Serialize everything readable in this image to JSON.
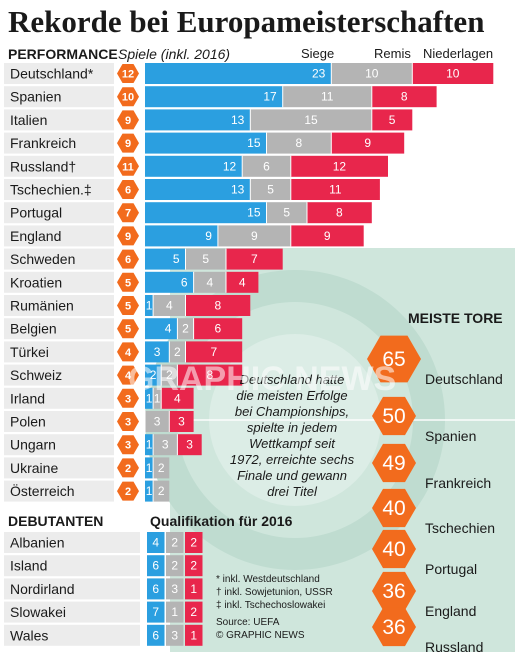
{
  "title": "Rekorde bei Europameisterschaften",
  "performance": {
    "heading": "PERFORMANCE",
    "subheading": "Spiele (inkl. 2016)",
    "columns": [
      "Siege",
      "Remis",
      "Niederlagen"
    ]
  },
  "chart_data": {
    "type": "bar",
    "stacked": true,
    "orientation": "horizontal",
    "categories": [
      "Deutschland*",
      "Spanien",
      "Italien",
      "Frankreich",
      "Russland†",
      "Tschechien.‡",
      "Portugal",
      "England",
      "Schweden",
      "Kroatien",
      "Rumänien",
      "Belgien",
      "Türkei",
      "Schweiz",
      "Irland",
      "Polen",
      "Ungarn",
      "Ukraine",
      "Österreich"
    ],
    "participations": [
      12,
      10,
      9,
      9,
      11,
      6,
      7,
      9,
      6,
      5,
      5,
      5,
      4,
      4,
      3,
      3,
      3,
      2,
      2
    ],
    "series": [
      {
        "name": "Siege",
        "color": "#2b9fe0",
        "values": [
          23,
          17,
          13,
          15,
          12,
          13,
          15,
          9,
          5,
          6,
          1,
          4,
          3,
          2,
          1,
          0,
          1,
          1,
          1
        ]
      },
      {
        "name": "Remis",
        "color": "#b4b4b4",
        "values": [
          10,
          11,
          15,
          8,
          6,
          5,
          5,
          9,
          5,
          4,
          4,
          2,
          2,
          2,
          1,
          3,
          3,
          2,
          2
        ]
      },
      {
        "name": "Niederlagen",
        "color": "#e8264c",
        "values": [
          10,
          8,
          5,
          9,
          12,
          11,
          8,
          9,
          7,
          4,
          8,
          6,
          7,
          8,
          4,
          3,
          3,
          0,
          0
        ]
      }
    ]
  },
  "debutanten": {
    "heading": "DEBUTANTEN",
    "qual_heading": "Qualifikation für 2016",
    "rows": [
      {
        "name": "Albanien",
        "siege": 4,
        "remis": 2,
        "niederlagen": 2
      },
      {
        "name": "Island",
        "siege": 6,
        "remis": 2,
        "niederlagen": 2
      },
      {
        "name": "Nordirland",
        "siege": 6,
        "remis": 3,
        "niederlagen": 1
      },
      {
        "name": "Slowakei",
        "siege": 7,
        "remis": 1,
        "niederlagen": 2
      },
      {
        "name": "Wales",
        "siege": 6,
        "remis": 3,
        "niederlagen": 1
      }
    ]
  },
  "meiste_tore": {
    "heading": "MEISTE TORE",
    "items": [
      {
        "value": 65,
        "name": "Deutschland"
      },
      {
        "value": 50,
        "name": "Spanien"
      },
      {
        "value": 49,
        "name": "Frankreich"
      },
      {
        "value": 40,
        "name": "Tschechien"
      },
      {
        "value": 40,
        "name": "Portugal"
      },
      {
        "value": 36,
        "name": "England"
      },
      {
        "value": 36,
        "name": "Russland"
      }
    ]
  },
  "note_lines": [
    "Deutschland hatte",
    "die meisten Erfolge",
    "bei Championships,",
    "spielte in jedem",
    "Wettkampf seit",
    "1972, erreichte sechs",
    "Finale und gewann",
    "drei Titel"
  ],
  "footnotes": [
    "* inkl. Westdeutschland",
    "† inkl. Sowjetunion, USSR",
    "‡ inkl. Tschechoslowakei"
  ],
  "source": "Source: UEFA",
  "credit": "© GRAPHIC NEWS",
  "watermark": "GRAPHIC NEWS",
  "colors": {
    "siege": "#2b9fe0",
    "remis": "#b4b4b4",
    "niederlagen": "#e8264c",
    "hex": "#f26b1d",
    "pitch": "#cfe6dc",
    "rowband": "#ececec"
  }
}
